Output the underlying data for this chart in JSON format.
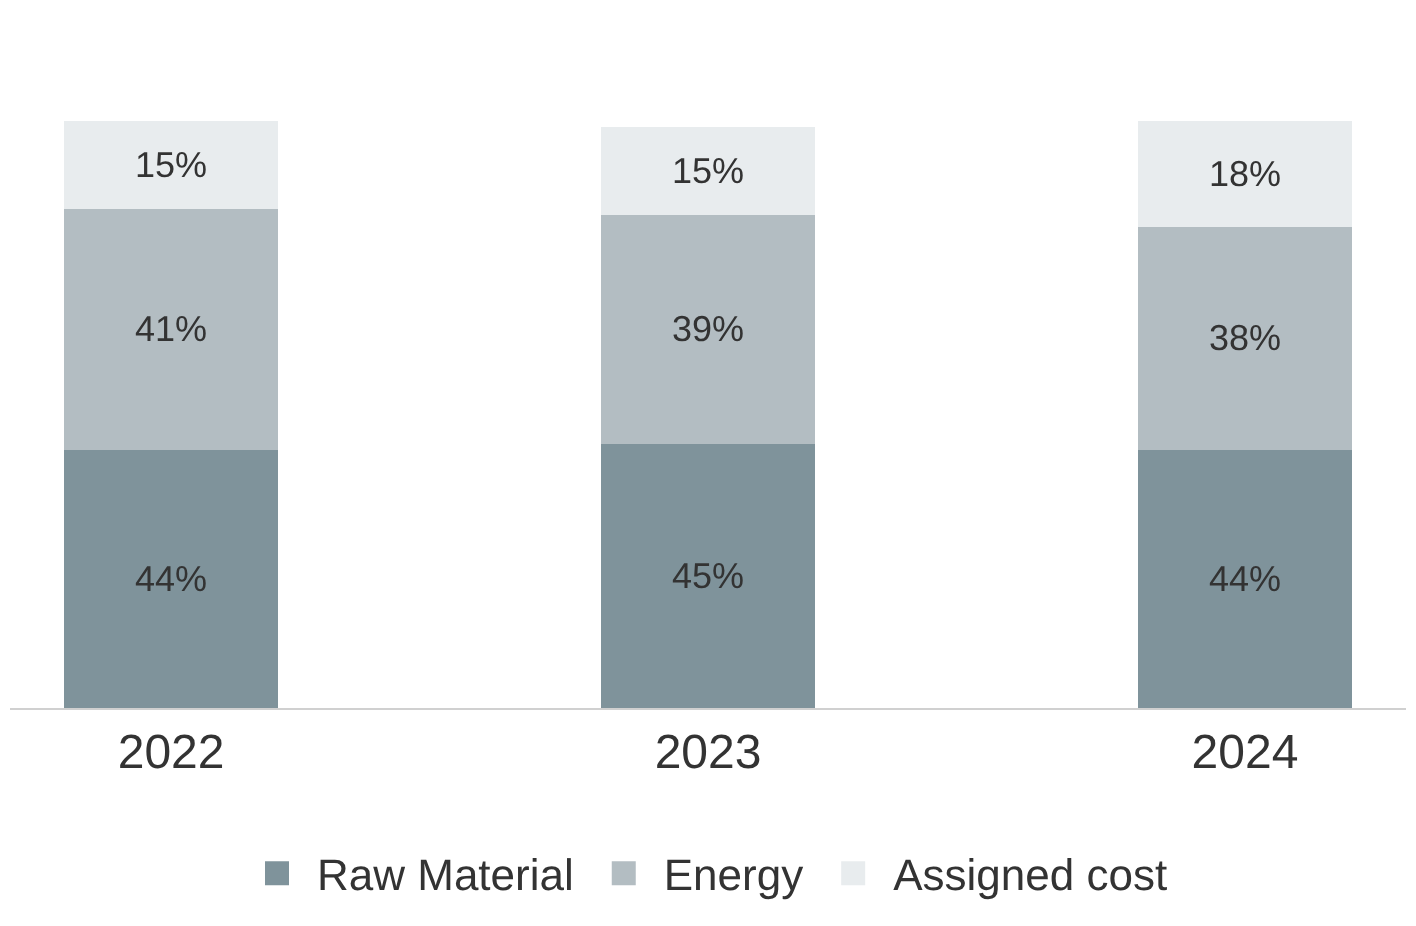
{
  "chart_data": {
    "type": "bar",
    "stacked": true,
    "categories": [
      "2022",
      "2023",
      "2024"
    ],
    "series": [
      {
        "name": "Raw Material",
        "color": "#7f939b",
        "values": [
          44,
          45,
          44
        ],
        "value_labels": [
          "44%",
          "45%",
          "44%"
        ]
      },
      {
        "name": "Energy",
        "color": "#b3bdc2",
        "values": [
          41,
          39,
          38
        ],
        "value_labels": [
          "41%",
          "39%",
          "38%"
        ]
      },
      {
        "name": "Assigned cost",
        "color": "#e8ecee",
        "values": [
          15,
          15,
          18
        ],
        "value_labels": [
          "15%",
          "15%",
          "18%"
        ]
      }
    ],
    "legend": "bottom",
    "grid": false
  }
}
